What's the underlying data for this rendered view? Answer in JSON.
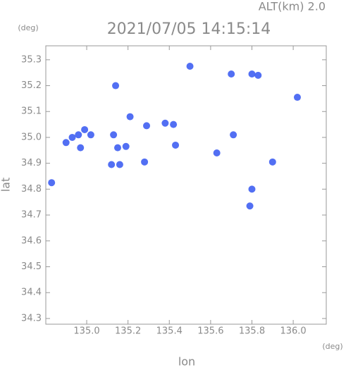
{
  "chart_data": {
    "type": "scatter",
    "title": "2021/07/05 14:15:14",
    "subtitle": "ALT(km) 2.0",
    "x_label": "lon",
    "y_label": "lat",
    "x_unit": "(deg)",
    "y_unit": "(deg)",
    "xlim": [
      134.802,
      136.16
    ],
    "ylim": [
      34.278,
      35.354
    ],
    "xticks": [
      {
        "value": 135,
        "label": "135.0"
      },
      135.2,
      135.4,
      135.6,
      135.8,
      {
        "value": 136,
        "label": "136.0"
      }
    ],
    "yticks": [
      34.3,
      34.4,
      34.5,
      34.6,
      34.7,
      34.8,
      34.9,
      {
        "value": 35,
        "label": "35.0"
      },
      35.1,
      35.2,
      35.3
    ],
    "series": [
      {
        "color": "#3f5ff2",
        "x": [
          134.83,
          134.9,
          134.93,
          134.96,
          134.99,
          135.02,
          134.97,
          135.14,
          135.12,
          135.16,
          135.13,
          135.15,
          135.19,
          135.28,
          135.38,
          135.42,
          135.5,
          135.7,
          135.8,
          135.83,
          136.02,
          135.9,
          135.8,
          135.43,
          135.21,
          135.29,
          135.63,
          135.71,
          135.79
        ],
        "values": [
          34.825,
          34.98,
          35.0,
          35.01,
          35.03,
          35.01,
          34.96,
          35.2,
          34.895,
          34.895,
          35.01,
          34.96,
          34.965,
          34.905,
          35.055,
          35.05,
          35.275,
          35.245,
          35.245,
          35.24,
          35.155,
          34.905,
          34.8,
          34.97,
          35.08,
          35.045,
          34.94,
          35.01,
          34.735
        ]
      }
    ]
  }
}
